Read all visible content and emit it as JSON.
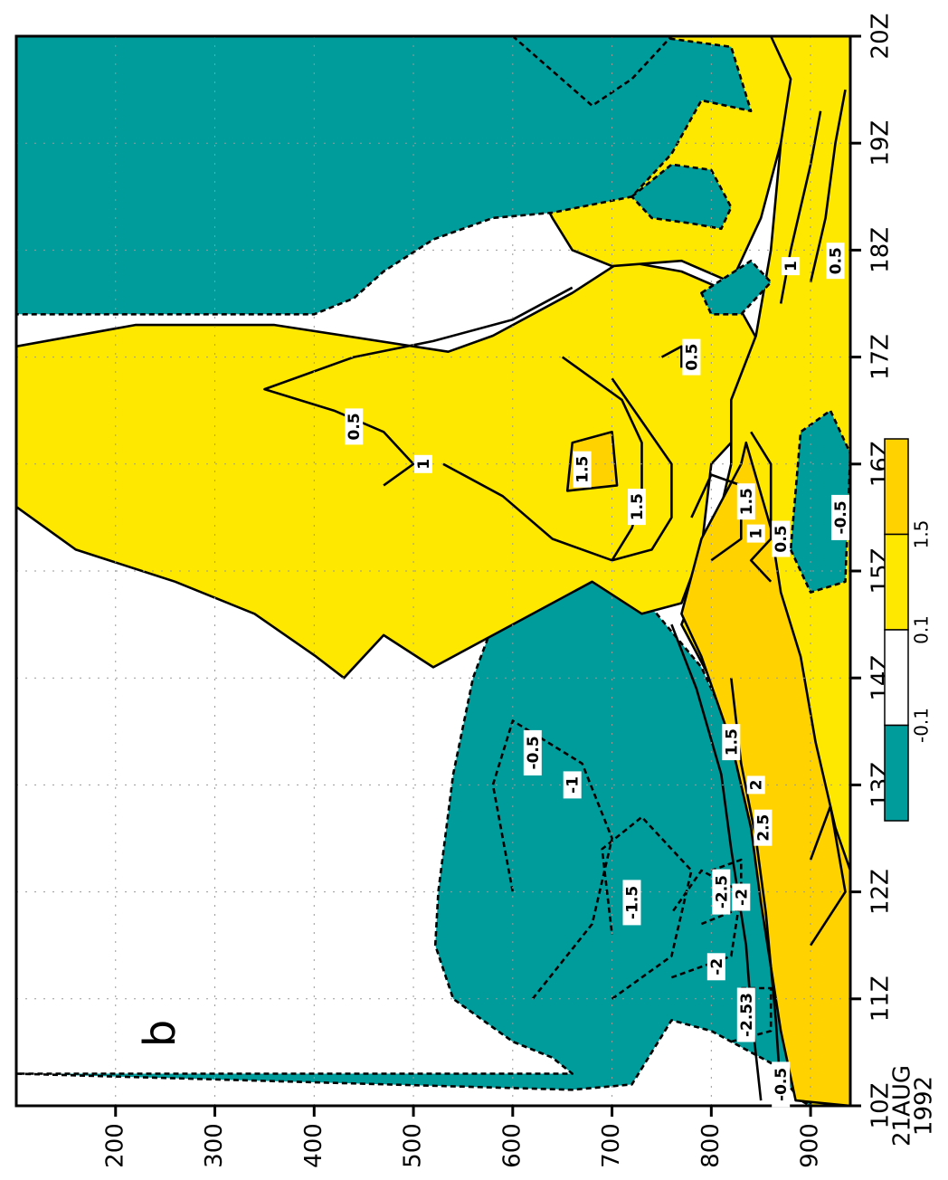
{
  "chart_data": {
    "type": "heatmap",
    "panel_label": "b",
    "orientation": "rotated 90 degrees clockwise",
    "x_axis": {
      "ticks": [
        "10Z",
        "11Z",
        "12Z",
        "13Z",
        "14Z",
        "15Z",
        "16Z",
        "17Z",
        "18Z",
        "19Z",
        "20Z"
      ],
      "date_label": "21AUG",
      "year_label": "1992"
    },
    "y_axis": {
      "ticks": [
        "200",
        "300",
        "400",
        "500",
        "600",
        "700",
        "800",
        "900"
      ],
      "range": [
        100,
        940
      ]
    },
    "grid": true,
    "legend": {
      "placement": "bottom-right",
      "ticks": [
        "-0.1",
        "0.1",
        "1.5"
      ],
      "colors": [
        "#009B9B",
        "#FFFFFF",
        "#FFE800",
        "#FFD200"
      ]
    },
    "colors": {
      "negative": "#009B9B",
      "neutral": "#FFFFFF",
      "positive": "#FFE800",
      "strong_positive": "#FFD200"
    },
    "contour_labels": [
      {
        "text": "-0.5",
        "time": 13.3,
        "p": 620
      },
      {
        "text": "-1",
        "time": 13.0,
        "p": 660
      },
      {
        "text": "-1.5",
        "time": 11.9,
        "p": 720
      },
      {
        "text": "-2",
        "time": 11.3,
        "p": 805
      },
      {
        "text": "-2.5",
        "time": 12.0,
        "p": 810
      },
      {
        "text": "-2",
        "time": 11.95,
        "p": 830
      },
      {
        "text": "-2.53",
        "time": 10.85,
        "p": 835
      },
      {
        "text": "-0.5",
        "time": 10.2,
        "p": 870
      },
      {
        "text": "0.5",
        "time": 16.35,
        "p": 440
      },
      {
        "text": "1",
        "time": 16.0,
        "p": 510
      },
      {
        "text": "1.5",
        "time": 15.95,
        "p": 670
      },
      {
        "text": "1.5",
        "time": 15.6,
        "p": 725
      },
      {
        "text": "1.5",
        "time": 15.65,
        "p": 835
      },
      {
        "text": "1",
        "time": 15.35,
        "p": 845
      },
      {
        "text": "0.5",
        "time": 15.3,
        "p": 870
      },
      {
        "text": "0.5",
        "time": 17.0,
        "p": 780
      },
      {
        "text": "1",
        "time": 17.85,
        "p": 880
      },
      {
        "text": "0.5",
        "time": 17.9,
        "p": 925
      },
      {
        "text": "-0.5",
        "time": 15.5,
        "p": 930
      },
      {
        "text": "1.5",
        "time": 13.4,
        "p": 820
      },
      {
        "text": "2",
        "time": 13.0,
        "p": 845
      },
      {
        "text": "2.5",
        "time": 12.6,
        "p": 852
      }
    ],
    "regions": [
      {
        "label": "negative left wedge",
        "class": "negative"
      },
      {
        "label": "negative top-right patches",
        "class": "negative"
      },
      {
        "label": "negative mid-right patches",
        "class": "negative"
      },
      {
        "label": "negative lower-right pocket",
        "class": "negative"
      },
      {
        "label": "positive central plume",
        "class": "positive"
      },
      {
        "label": "positive low band",
        "class": "positive"
      },
      {
        "label": "strong positive core",
        "class": "strong_positive"
      }
    ]
  }
}
